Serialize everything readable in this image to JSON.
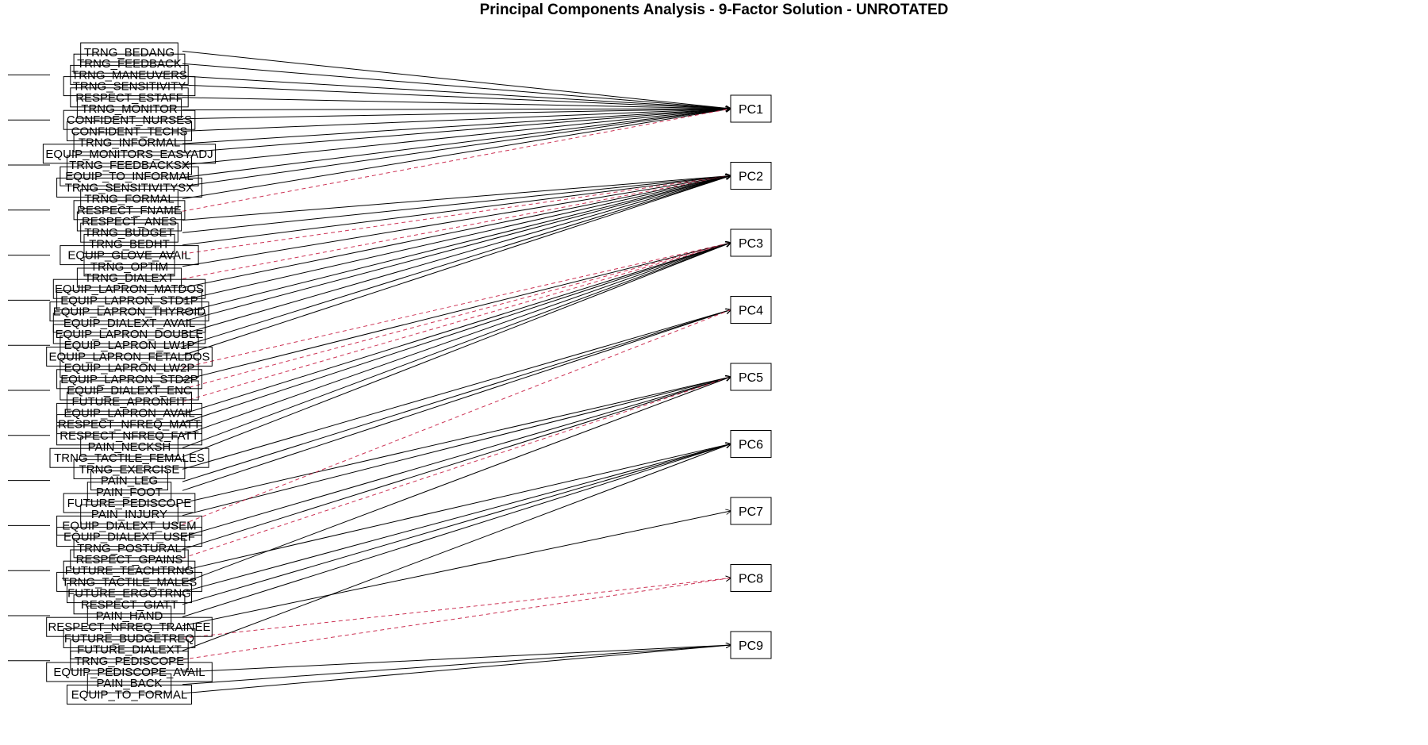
{
  "title": "Principal Components Analysis - 9-Factor Solution - UNROTATED",
  "colors": {
    "positive": "#000000",
    "negative": "#cc3355"
  },
  "components": [
    "PC1",
    "PC2",
    "PC3",
    "PC4",
    "PC5",
    "PC6",
    "PC7",
    "PC8",
    "PC9"
  ],
  "variables": [
    {
      "label": "TRNG_BEDANG",
      "pc": 0,
      "neg": false
    },
    {
      "label": "TRNG_FEEDBACK",
      "pc": 0,
      "neg": false
    },
    {
      "label": "TRNG_MANEUVERS",
      "pc": 0,
      "neg": false
    },
    {
      "label": "TRNG_SENSITIVITY",
      "pc": 0,
      "neg": false
    },
    {
      "label": "RESPECT_ESTAFF",
      "pc": 0,
      "neg": false
    },
    {
      "label": "TRNG_MONITOR",
      "pc": 0,
      "neg": false
    },
    {
      "label": "CONFIDENT_NURSES",
      "pc": 0,
      "neg": false
    },
    {
      "label": "CONFIDENT_TECHS",
      "pc": 0,
      "neg": false
    },
    {
      "label": "TRNG_INFORMAL",
      "pc": 0,
      "neg": false
    },
    {
      "label": "EQUIP_MONITORS_EASYADJ",
      "pc": 0,
      "neg": false
    },
    {
      "label": "TRNG_FEEDBACKSX",
      "pc": 0,
      "neg": false
    },
    {
      "label": "EQUIP_TO_INFORMAL",
      "pc": 0,
      "neg": false
    },
    {
      "label": "TRNG_SENSITIVITYSX",
      "pc": 0,
      "neg": false
    },
    {
      "label": "TRNG_FORMAL",
      "pc": 0,
      "neg": false
    },
    {
      "label": "RESPECT_FNAME",
      "pc": 0,
      "neg": true
    },
    {
      "label": "RESPECT_ANES",
      "pc": 1,
      "neg": false
    },
    {
      "label": "TRNG_BUDGET",
      "pc": 1,
      "neg": false
    },
    {
      "label": "TRNG_BEDHT",
      "pc": 1,
      "neg": false
    },
    {
      "label": "EQUIP_GLOVE_AVAIL",
      "pc": 1,
      "neg": true
    },
    {
      "label": "TRNG_OPTIM",
      "pc": 1,
      "neg": false
    },
    {
      "label": "TRNG_DIALEXT",
      "pc": 1,
      "neg": true
    },
    {
      "label": "EQUIP_LAPRON_MATDOS",
      "pc": 1,
      "neg": false
    },
    {
      "label": "EQUIP_LAPRON_STD1P",
      "pc": 1,
      "neg": false
    },
    {
      "label": "EQUIP_LAPRON_THYROID",
      "pc": 1,
      "neg": false
    },
    {
      "label": "EQUIP_DIALEXT_AVAIL",
      "pc": 1,
      "neg": false
    },
    {
      "label": "EQUIP_LAPRON_DOUBLE",
      "pc": 1,
      "neg": false
    },
    {
      "label": "EQUIP_LAPRON_LW1P",
      "pc": 1,
      "neg": false
    },
    {
      "label": "EQUIP_LAPRON_FETALDOS",
      "pc": 1,
      "neg": false
    },
    {
      "label": "EQUIP_LAPRON_LW2P",
      "pc": 2,
      "neg": true
    },
    {
      "label": "EQUIP_LAPRON_STD2P",
      "pc": 2,
      "neg": false
    },
    {
      "label": "EQUIP_DIALEXT_ENC",
      "pc": 2,
      "neg": true
    },
    {
      "label": "FUTURE_APRONFIT",
      "pc": 2,
      "neg": true
    },
    {
      "label": "EQUIP_LAPRON_AVAIL",
      "pc": 2,
      "neg": false
    },
    {
      "label": "RESPECT_NFREQ_MATT",
      "pc": 2,
      "neg": false
    },
    {
      "label": "RESPECT_NFREQ_FATT",
      "pc": 2,
      "neg": false
    },
    {
      "label": "PAIN_NECKSH",
      "pc": 2,
      "neg": false
    },
    {
      "label": "TRNG_TACTILE_FEMALES",
      "pc": 2,
      "neg": false
    },
    {
      "label": "TRNG_EXERCISE",
      "pc": 3,
      "neg": false
    },
    {
      "label": "PAIN_LEG",
      "pc": 3,
      "neg": false
    },
    {
      "label": "PAIN_FOOT",
      "pc": 3,
      "neg": false
    },
    {
      "label": "FUTURE_PEDISCOPE",
      "pc": 4,
      "neg": false
    },
    {
      "label": "PAIN_INJURY",
      "pc": 4,
      "neg": false
    },
    {
      "label": "EQUIP_DIALEXT_USEM",
      "pc": 3,
      "neg": true
    },
    {
      "label": "EQUIP_DIALEXT_USEF",
      "pc": 4,
      "neg": false
    },
    {
      "label": "TRNG_POSTURAL",
      "pc": 4,
      "neg": false
    },
    {
      "label": "RESPECT_GPAINS",
      "pc": 4,
      "neg": true
    },
    {
      "label": "FUTURE_TEACHTRNG",
      "pc": 5,
      "neg": false
    },
    {
      "label": "TRNG_TACTILE_MALES",
      "pc": 4,
      "neg": false
    },
    {
      "label": "FUTURE_ERGOTRNG",
      "pc": 5,
      "neg": false
    },
    {
      "label": "RESPECT_GIATT",
      "pc": 5,
      "neg": false
    },
    {
      "label": "PAIN_HAND",
      "pc": 5,
      "neg": false
    },
    {
      "label": "RESPECT_NFREQ_TRAINEE",
      "pc": 6,
      "neg": false
    },
    {
      "label": "FUTURE_BUDGETREQ",
      "pc": 7,
      "neg": true
    },
    {
      "label": "FUTURE_DIALEXT",
      "pc": 5,
      "neg": false
    },
    {
      "label": "TRNG_PEDISCOPE",
      "pc": 7,
      "neg": true
    },
    {
      "label": "EQUIP_PEDISCOPE_AVAIL",
      "pc": 8,
      "neg": false
    },
    {
      "label": "PAIN_BACK",
      "pc": 8,
      "neg": false
    },
    {
      "label": "EQUIP_TO_FORMAL",
      "pc": 8,
      "neg": false
    }
  ]
}
